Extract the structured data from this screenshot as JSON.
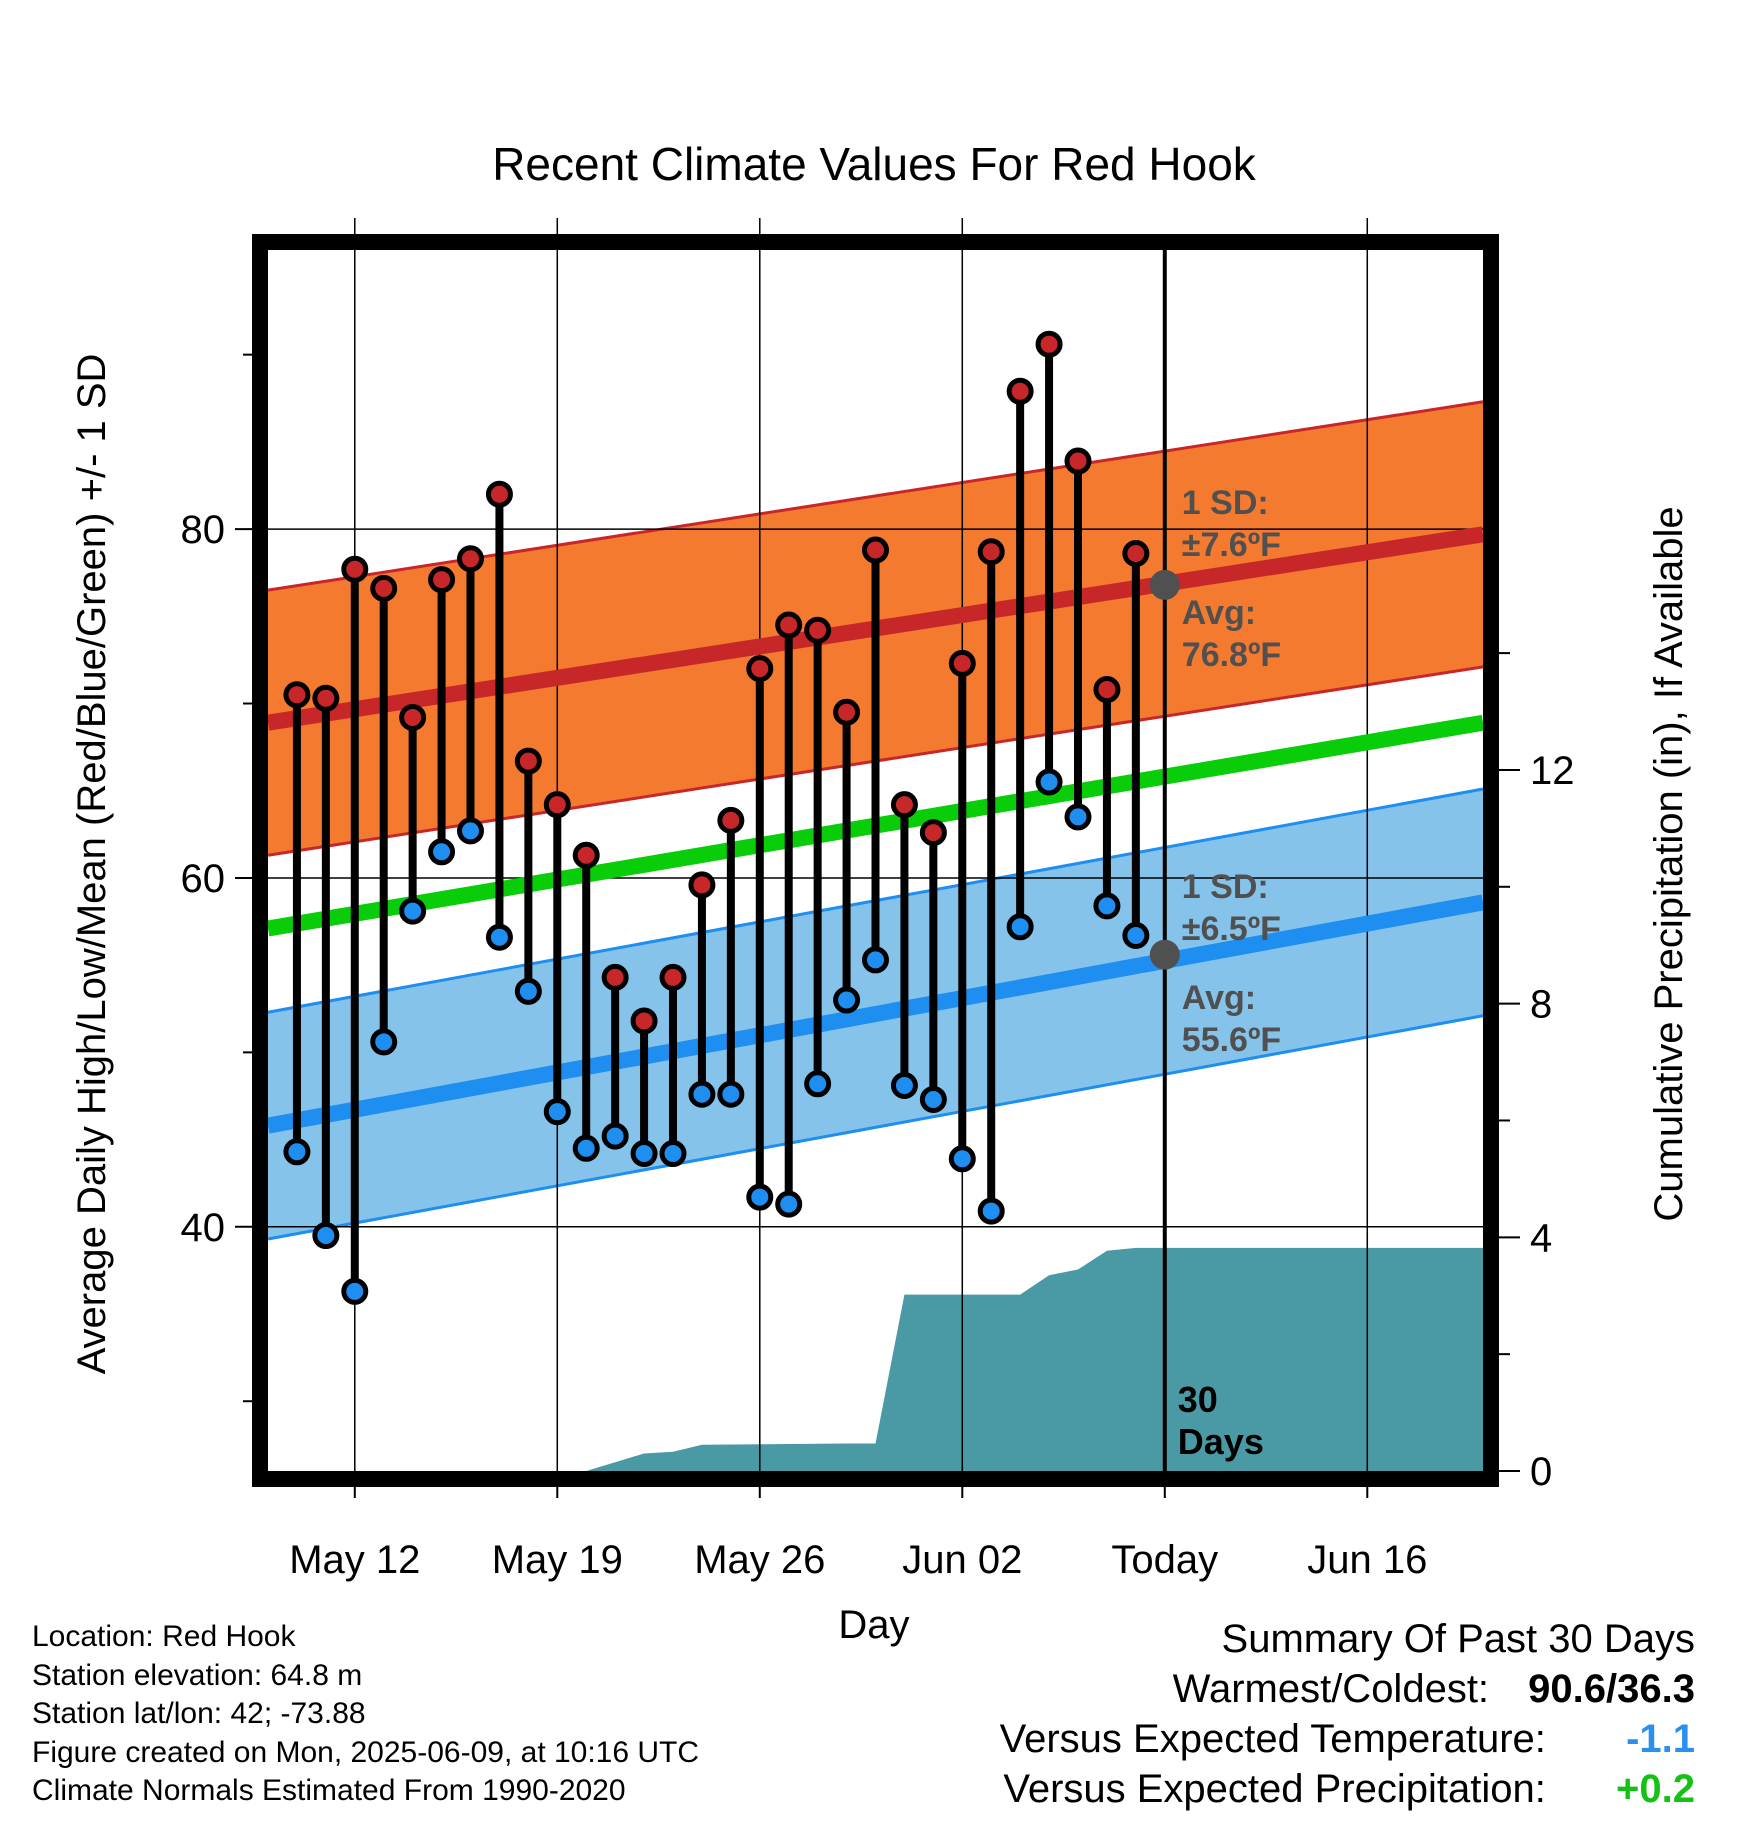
{
  "chart_data": {
    "type": "line",
    "title": "Recent Climate Values For Red Hook",
    "xlabel": "Day",
    "ylabel": "Average Daily High/Low/Mean (Red/Blue/Green) +/- 1 SD",
    "y2label": "Cumulative Precipitation (in), If Available",
    "xlim": [
      "2025-05-09",
      "2025-06-20"
    ],
    "ylim": [
      26,
      96
    ],
    "y2lim": [
      0,
      20.9
    ],
    "x_ticks": [
      {
        "date": "2025-05-12",
        "label": "May 12"
      },
      {
        "date": "2025-05-19",
        "label": "May 19"
      },
      {
        "date": "2025-05-26",
        "label": "May 26"
      },
      {
        "date": "2025-06-02",
        "label": "Jun 02"
      },
      {
        "date": "2025-06-09",
        "label": "Today"
      },
      {
        "date": "2025-06-16",
        "label": "Jun 16"
      }
    ],
    "y_ticks": [
      40,
      60,
      80
    ],
    "y2_ticks": [
      0,
      4,
      8,
      12
    ],
    "grid": true,
    "today": "2025-06-09",
    "today_label": "30 Days",
    "normals": {
      "dates": [
        "2025-05-09",
        "2025-06-20"
      ],
      "high_mean": [
        68.9,
        79.7
      ],
      "high_sd": 7.6,
      "mean": [
        57.1,
        68.9
      ],
      "low_mean": [
        45.8,
        58.6
      ],
      "low_sd": 6.5
    },
    "high_annotation": {
      "sd_text": "1 SD:",
      "sd_value": "±7.6ºF",
      "avg_text": "Avg:",
      "avg_value": "76.8ºF",
      "value": 76.8
    },
    "low_annotation": {
      "sd_text": "1 SD:",
      "sd_value": "±6.5ºF",
      "avg_text": "Avg:",
      "avg_value": "55.6ºF",
      "value": 55.6
    },
    "daily": [
      {
        "date": "2025-05-10",
        "high": 70.5,
        "low": 44.3
      },
      {
        "date": "2025-05-11",
        "high": 70.3,
        "low": 39.5
      },
      {
        "date": "2025-05-12",
        "high": 77.7,
        "low": 36.3
      },
      {
        "date": "2025-05-13",
        "high": 76.6,
        "low": 50.6
      },
      {
        "date": "2025-05-14",
        "high": 69.2,
        "low": 58.1
      },
      {
        "date": "2025-05-15",
        "high": 77.1,
        "low": 61.5
      },
      {
        "date": "2025-05-16",
        "high": 78.3,
        "low": 62.7
      },
      {
        "date": "2025-05-17",
        "high": 82.0,
        "low": 56.6
      },
      {
        "date": "2025-05-18",
        "high": 66.7,
        "low": 53.5
      },
      {
        "date": "2025-05-19",
        "high": 64.2,
        "low": 46.6
      },
      {
        "date": "2025-05-20",
        "high": 61.3,
        "low": 44.5
      },
      {
        "date": "2025-05-21",
        "high": 54.3,
        "low": 45.2
      },
      {
        "date": "2025-05-22",
        "high": 51.8,
        "low": 44.2
      },
      {
        "date": "2025-05-23",
        "high": 54.3,
        "low": 44.2
      },
      {
        "date": "2025-05-24",
        "high": 59.6,
        "low": 47.6
      },
      {
        "date": "2025-05-25",
        "high": 63.3,
        "low": 47.6
      },
      {
        "date": "2025-05-26",
        "high": 72.0,
        "low": 41.7
      },
      {
        "date": "2025-05-27",
        "high": 74.5,
        "low": 41.3
      },
      {
        "date": "2025-05-28",
        "high": 74.2,
        "low": 48.2
      },
      {
        "date": "2025-05-29",
        "high": 69.5,
        "low": 53.0
      },
      {
        "date": "2025-05-30",
        "high": 78.8,
        "low": 55.3
      },
      {
        "date": "2025-05-31",
        "high": 64.2,
        "low": 48.1
      },
      {
        "date": "2025-06-01",
        "high": 62.6,
        "low": 47.3
      },
      {
        "date": "2025-06-02",
        "high": 72.3,
        "low": 43.9
      },
      {
        "date": "2025-06-03",
        "high": 78.7,
        "low": 40.9
      },
      {
        "date": "2025-06-04",
        "high": 87.9,
        "low": 57.2
      },
      {
        "date": "2025-06-05",
        "high": 90.6,
        "low": 65.5
      },
      {
        "date": "2025-06-06",
        "high": 83.9,
        "low": 63.5
      },
      {
        "date": "2025-06-07",
        "high": 70.8,
        "low": 58.4
      },
      {
        "date": "2025-06-08",
        "high": 78.6,
        "low": 56.7
      }
    ],
    "precip_cumulative": {
      "dates": [
        "2025-05-09",
        "2025-05-20",
        "2025-05-21",
        "2025-05-22",
        "2025-05-23",
        "2025-05-24",
        "2025-05-29",
        "2025-05-30",
        "2025-05-31",
        "2025-06-04",
        "2025-06-05",
        "2025-06-06",
        "2025-06-07",
        "2025-06-08",
        "2025-06-09",
        "2025-06-20"
      ],
      "values": [
        0,
        0,
        0.15,
        0.3,
        0.33,
        0.45,
        0.47,
        0.47,
        3.02,
        3.02,
        3.35,
        3.45,
        3.77,
        3.82,
        3.82,
        3.82
      ]
    },
    "colors": {
      "high": "#c8272a",
      "high_band": "#f47a30",
      "low": "#1e8ef0",
      "low_band": "#85c3ea",
      "mean": "#09cd09",
      "precip": "#4a9aa6",
      "annotation": "#505050"
    }
  },
  "info": {
    "location": "Location: Red Hook",
    "elevation": "Station elevation: 64.8 m",
    "latlon": "Station lat/lon: 42; -73.88",
    "created": "Figure created on Mon, 2025-06-09, at 10:16 UTC",
    "normals": "Climate Normals Estimated From 1990-2020"
  },
  "summary": {
    "title": "Summary Of Past 30 Days",
    "warm_cold_label": "Warmest/Coldest:",
    "warm_cold_value": "90.6/36.3",
    "temp_label": "Versus Expected Temperature:",
    "temp_value": "-1.1",
    "temp_color": "#2b8ff0",
    "precip_label": "Versus Expected Precipitation:",
    "precip_value": "+0.2",
    "precip_color": "#13c213"
  }
}
